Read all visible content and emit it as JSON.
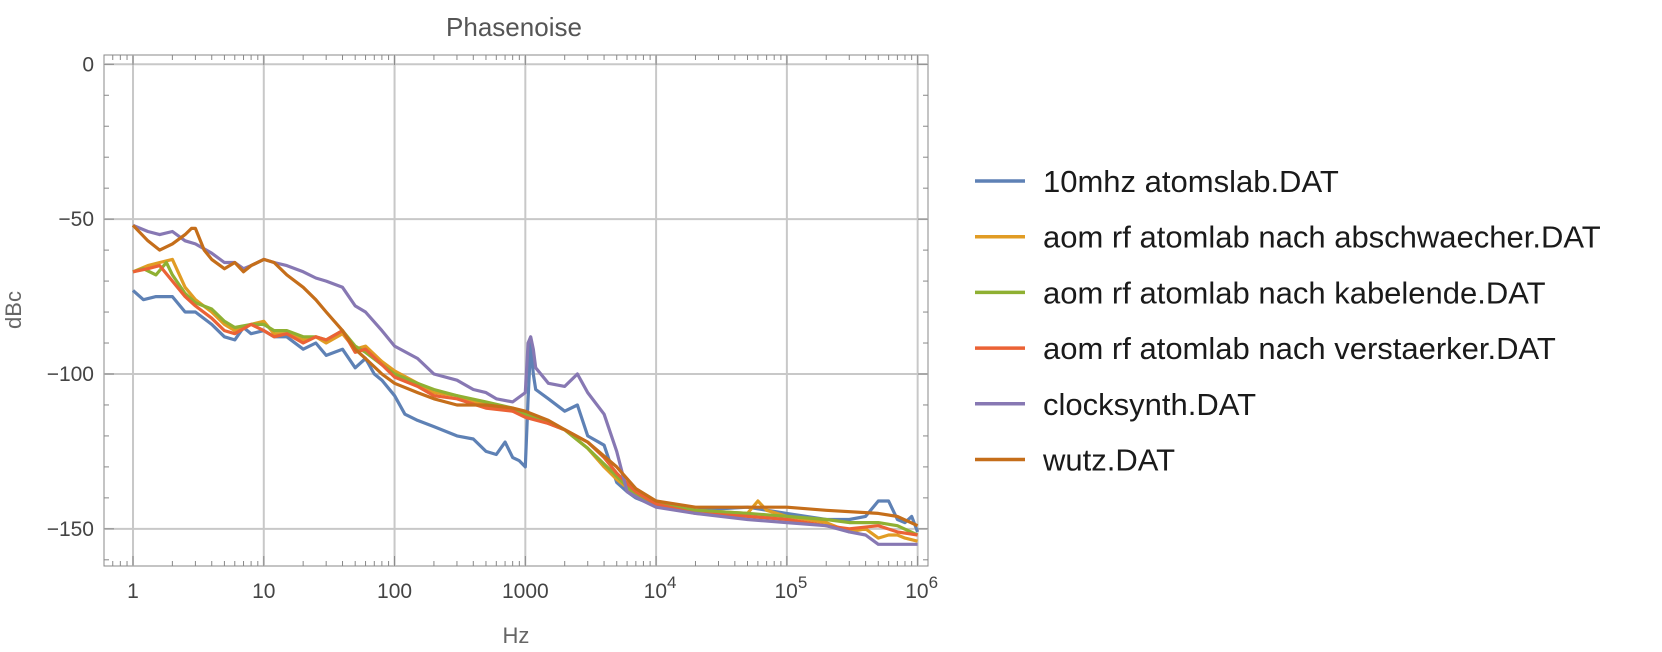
{
  "chart_data": {
    "type": "line",
    "title": "Phasenoise",
    "xlabel": "Hz",
    "ylabel": "dBc",
    "xscale": "log",
    "xlim": [
      0.6,
      1200000
    ],
    "ylim": [
      -162,
      3
    ],
    "grid": true,
    "legend_position": "right",
    "x_ticks": [
      {
        "value": 1,
        "label": "1"
      },
      {
        "value": 10,
        "label": "10"
      },
      {
        "value": 100,
        "label": "100"
      },
      {
        "value": 1000,
        "label": "1000"
      },
      {
        "value": 10000,
        "base": "10",
        "exp": "4"
      },
      {
        "value": 100000,
        "base": "10",
        "exp": "5"
      },
      {
        "value": 1000000,
        "base": "10",
        "exp": "6"
      }
    ],
    "y_ticks": [
      {
        "value": 0,
        "label": "0"
      },
      {
        "value": -50,
        "label": "−50"
      },
      {
        "value": -100,
        "label": "−100"
      },
      {
        "value": -150,
        "label": "−150"
      }
    ],
    "series": [
      {
        "name": "10mhz atomslab.DAT",
        "color": "#5e81b5",
        "points": [
          [
            1,
            -73
          ],
          [
            1.2,
            -76
          ],
          [
            1.5,
            -75
          ],
          [
            2,
            -75
          ],
          [
            2.5,
            -80
          ],
          [
            3,
            -80
          ],
          [
            4,
            -84
          ],
          [
            5,
            -88
          ],
          [
            6,
            -89
          ],
          [
            7,
            -85
          ],
          [
            8,
            -87
          ],
          [
            10,
            -86
          ],
          [
            12,
            -88
          ],
          [
            15,
            -88
          ],
          [
            20,
            -92
          ],
          [
            25,
            -90
          ],
          [
            30,
            -94
          ],
          [
            40,
            -92
          ],
          [
            50,
            -98
          ],
          [
            60,
            -95
          ],
          [
            70,
            -100
          ],
          [
            80,
            -102
          ],
          [
            100,
            -107
          ],
          [
            120,
            -113
          ],
          [
            150,
            -115
          ],
          [
            200,
            -117
          ],
          [
            300,
            -120
          ],
          [
            400,
            -121
          ],
          [
            500,
            -125
          ],
          [
            600,
            -126
          ],
          [
            700,
            -122
          ],
          [
            800,
            -127
          ],
          [
            900,
            -128
          ],
          [
            1000,
            -130
          ],
          [
            1050,
            -108
          ],
          [
            1100,
            -90
          ],
          [
            1150,
            -100
          ],
          [
            1200,
            -105
          ],
          [
            1500,
            -108
          ],
          [
            2000,
            -112
          ],
          [
            2500,
            -110
          ],
          [
            3000,
            -120
          ],
          [
            4000,
            -123
          ],
          [
            5000,
            -135
          ],
          [
            6000,
            -138
          ],
          [
            7000,
            -140
          ],
          [
            8000,
            -141
          ],
          [
            10000,
            -142
          ],
          [
            20000,
            -144
          ],
          [
            50000,
            -143
          ],
          [
            100000,
            -145
          ],
          [
            200000,
            -147
          ],
          [
            300000,
            -147
          ],
          [
            400000,
            -146
          ],
          [
            500000,
            -141
          ],
          [
            600000,
            -141
          ],
          [
            700000,
            -147
          ],
          [
            800000,
            -148
          ],
          [
            900000,
            -146
          ],
          [
            1000000,
            -151
          ]
        ]
      },
      {
        "name": "aom rf atomlab nach abschwaecher.DAT",
        "color": "#e19c24",
        "points": [
          [
            1,
            -67
          ],
          [
            1.3,
            -65
          ],
          [
            1.6,
            -64
          ],
          [
            2,
            -63
          ],
          [
            2.5,
            -72
          ],
          [
            3,
            -76
          ],
          [
            4,
            -80
          ],
          [
            5,
            -84
          ],
          [
            6,
            -86
          ],
          [
            8,
            -84
          ],
          [
            10,
            -83
          ],
          [
            12,
            -87
          ],
          [
            15,
            -87
          ],
          [
            20,
            -89
          ],
          [
            25,
            -88
          ],
          [
            30,
            -90
          ],
          [
            40,
            -87
          ],
          [
            50,
            -92
          ],
          [
            60,
            -91
          ],
          [
            80,
            -96
          ],
          [
            100,
            -99
          ],
          [
            150,
            -103
          ],
          [
            200,
            -106
          ],
          [
            300,
            -107
          ],
          [
            500,
            -110
          ],
          [
            800,
            -112
          ],
          [
            1000,
            -113
          ],
          [
            2000,
            -118
          ],
          [
            3000,
            -124
          ],
          [
            4000,
            -130
          ],
          [
            5000,
            -134
          ],
          [
            7000,
            -139
          ],
          [
            10000,
            -142
          ],
          [
            20000,
            -144
          ],
          [
            50000,
            -145
          ],
          [
            60000,
            -141
          ],
          [
            70000,
            -144
          ],
          [
            100000,
            -146
          ],
          [
            200000,
            -148
          ],
          [
            300000,
            -151
          ],
          [
            400000,
            -150
          ],
          [
            500000,
            -153
          ],
          [
            600000,
            -152
          ],
          [
            700000,
            -152
          ],
          [
            800000,
            -153
          ],
          [
            1000000,
            -154
          ]
        ]
      },
      {
        "name": "aom rf atomlab nach kabelende.DAT",
        "color": "#8fb032",
        "points": [
          [
            1,
            -67
          ],
          [
            1.2,
            -66
          ],
          [
            1.5,
            -68
          ],
          [
            1.8,
            -64
          ],
          [
            2,
            -68
          ],
          [
            2.5,
            -74
          ],
          [
            3,
            -77
          ],
          [
            4,
            -79
          ],
          [
            5,
            -83
          ],
          [
            6,
            -85
          ],
          [
            8,
            -84
          ],
          [
            10,
            -84
          ],
          [
            12,
            -86
          ],
          [
            15,
            -86
          ],
          [
            20,
            -88
          ],
          [
            25,
            -88
          ],
          [
            30,
            -89
          ],
          [
            40,
            -86
          ],
          [
            50,
            -91
          ],
          [
            60,
            -93
          ],
          [
            80,
            -97
          ],
          [
            100,
            -100
          ],
          [
            150,
            -103
          ],
          [
            200,
            -105
          ],
          [
            300,
            -107
          ],
          [
            500,
            -109
          ],
          [
            800,
            -111
          ],
          [
            1000,
            -113
          ],
          [
            2000,
            -118
          ],
          [
            3000,
            -124
          ],
          [
            5000,
            -133
          ],
          [
            7000,
            -139
          ],
          [
            10000,
            -142
          ],
          [
            20000,
            -144
          ],
          [
            50000,
            -145
          ],
          [
            100000,
            -146
          ],
          [
            200000,
            -147
          ],
          [
            300000,
            -148
          ],
          [
            500000,
            -148
          ],
          [
            700000,
            -149
          ],
          [
            1000000,
            -152
          ]
        ]
      },
      {
        "name": "aom rf atomlab nach verstaerker.DAT",
        "color": "#eb6235",
        "points": [
          [
            1,
            -67
          ],
          [
            1.3,
            -66
          ],
          [
            1.6,
            -65
          ],
          [
            2,
            -70
          ],
          [
            2.5,
            -75
          ],
          [
            3,
            -78
          ],
          [
            4,
            -82
          ],
          [
            5,
            -86
          ],
          [
            6,
            -87
          ],
          [
            8,
            -84
          ],
          [
            10,
            -86
          ],
          [
            12,
            -88
          ],
          [
            15,
            -87
          ],
          [
            20,
            -90
          ],
          [
            25,
            -88
          ],
          [
            30,
            -89
          ],
          [
            40,
            -86
          ],
          [
            50,
            -93
          ],
          [
            60,
            -92
          ],
          [
            80,
            -97
          ],
          [
            100,
            -101
          ],
          [
            150,
            -104
          ],
          [
            200,
            -107
          ],
          [
            300,
            -108
          ],
          [
            500,
            -111
          ],
          [
            800,
            -112
          ],
          [
            1000,
            -114
          ],
          [
            1500,
            -116
          ],
          [
            2000,
            -118
          ],
          [
            3000,
            -122
          ],
          [
            4000,
            -127
          ],
          [
            5000,
            -132
          ],
          [
            7000,
            -138
          ],
          [
            10000,
            -142
          ],
          [
            20000,
            -145
          ],
          [
            50000,
            -146
          ],
          [
            100000,
            -147
          ],
          [
            200000,
            -149
          ],
          [
            300000,
            -150
          ],
          [
            500000,
            -149
          ],
          [
            700000,
            -151
          ],
          [
            1000000,
            -152
          ]
        ]
      },
      {
        "name": "clocksynth.DAT",
        "color": "#8778b3",
        "points": [
          [
            1,
            -52
          ],
          [
            1.3,
            -54
          ],
          [
            1.6,
            -55
          ],
          [
            2,
            -54
          ],
          [
            2.5,
            -57
          ],
          [
            3,
            -58
          ],
          [
            4,
            -61
          ],
          [
            5,
            -64
          ],
          [
            6,
            -64
          ],
          [
            7,
            -66
          ],
          [
            8,
            -65
          ],
          [
            10,
            -63
          ],
          [
            12,
            -64
          ],
          [
            15,
            -65
          ],
          [
            20,
            -67
          ],
          [
            25,
            -69
          ],
          [
            30,
            -70
          ],
          [
            40,
            -72
          ],
          [
            50,
            -78
          ],
          [
            60,
            -80
          ],
          [
            80,
            -86
          ],
          [
            100,
            -91
          ],
          [
            150,
            -95
          ],
          [
            200,
            -100
          ],
          [
            300,
            -102
          ],
          [
            400,
            -105
          ],
          [
            500,
            -106
          ],
          [
            600,
            -108
          ],
          [
            800,
            -109
          ],
          [
            1000,
            -106
          ],
          [
            1050,
            -90
          ],
          [
            1100,
            -88
          ],
          [
            1150,
            -92
          ],
          [
            1200,
            -98
          ],
          [
            1500,
            -103
          ],
          [
            2000,
            -104
          ],
          [
            2500,
            -100
          ],
          [
            3000,
            -106
          ],
          [
            4000,
            -113
          ],
          [
            5000,
            -125
          ],
          [
            6000,
            -138
          ],
          [
            8000,
            -141
          ],
          [
            10000,
            -143
          ],
          [
            20000,
            -145
          ],
          [
            50000,
            -147
          ],
          [
            100000,
            -148
          ],
          [
            200000,
            -149
          ],
          [
            300000,
            -151
          ],
          [
            400000,
            -152
          ],
          [
            500000,
            -155
          ],
          [
            700000,
            -155
          ],
          [
            1000000,
            -155
          ]
        ]
      },
      {
        "name": "wutz.DAT",
        "color": "#c56e1a",
        "points": [
          [
            1,
            -52
          ],
          [
            1.3,
            -57
          ],
          [
            1.6,
            -60
          ],
          [
            2,
            -58
          ],
          [
            2.5,
            -55
          ],
          [
            2.8,
            -53
          ],
          [
            3,
            -53
          ],
          [
            3.5,
            -60
          ],
          [
            4,
            -63
          ],
          [
            5,
            -66
          ],
          [
            6,
            -64
          ],
          [
            7,
            -67
          ],
          [
            8,
            -65
          ],
          [
            10,
            -63
          ],
          [
            12,
            -64
          ],
          [
            15,
            -68
          ],
          [
            20,
            -72
          ],
          [
            25,
            -76
          ],
          [
            30,
            -80
          ],
          [
            40,
            -86
          ],
          [
            50,
            -92
          ],
          [
            60,
            -95
          ],
          [
            80,
            -100
          ],
          [
            100,
            -103
          ],
          [
            150,
            -106
          ],
          [
            200,
            -108
          ],
          [
            300,
            -110
          ],
          [
            500,
            -110
          ],
          [
            800,
            -111
          ],
          [
            1000,
            -112
          ],
          [
            1500,
            -115
          ],
          [
            2000,
            -118
          ],
          [
            3000,
            -122
          ],
          [
            5000,
            -130
          ],
          [
            7000,
            -137
          ],
          [
            10000,
            -141
          ],
          [
            20000,
            -143
          ],
          [
            50000,
            -143
          ],
          [
            100000,
            -143
          ],
          [
            200000,
            -144
          ],
          [
            500000,
            -145
          ],
          [
            700000,
            -146
          ],
          [
            1000000,
            -149
          ]
        ]
      }
    ]
  }
}
